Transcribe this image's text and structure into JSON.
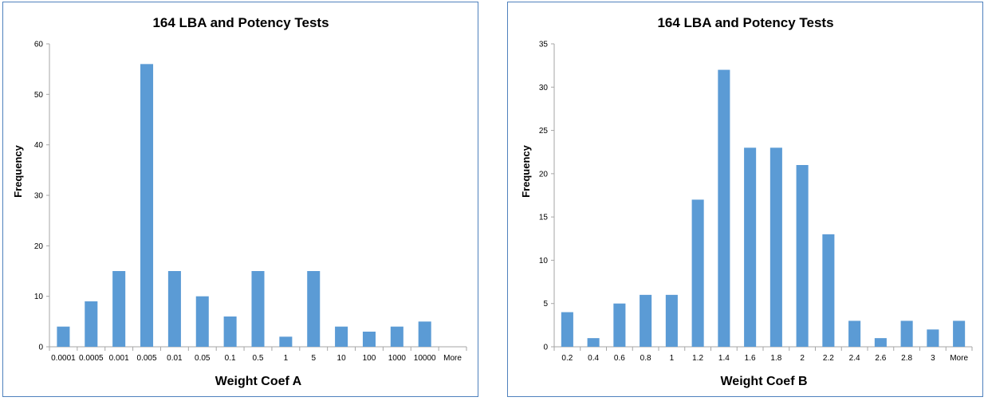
{
  "chart_data": [
    {
      "type": "bar",
      "title": "164 LBA and Potency Tests",
      "xlabel": "Weight Coef A",
      "ylabel": "Frequency",
      "categories": [
        "0.0001",
        "0.0005",
        "0.001",
        "0.005",
        "0.01",
        "0.05",
        "0.1",
        "0.5",
        "1",
        "5",
        "10",
        "100",
        "1000",
        "10000",
        "More"
      ],
      "values": [
        4,
        9,
        15,
        56,
        15,
        10,
        6,
        15,
        2,
        15,
        4,
        3,
        4,
        5,
        0
      ],
      "ylim": [
        0,
        60
      ],
      "yticks": [
        0,
        10,
        20,
        30,
        40,
        50,
        60
      ],
      "grid": false,
      "color": "#5b9bd5"
    },
    {
      "type": "bar",
      "title": "164 LBA and Potency Tests",
      "xlabel": "Weight Coef B",
      "ylabel": "Frequency",
      "categories": [
        "0.2",
        "0.4",
        "0.6",
        "0.8",
        "1",
        "1.2",
        "1.4",
        "1.6",
        "1.8",
        "2",
        "2.2",
        "2.4",
        "2.6",
        "2.8",
        "3",
        "More"
      ],
      "values": [
        4,
        1,
        5,
        6,
        6,
        17,
        32,
        23,
        23,
        21,
        13,
        3,
        1,
        3,
        2,
        3
      ],
      "ylim": [
        0,
        35
      ],
      "yticks": [
        0,
        5,
        10,
        15,
        20,
        25,
        30,
        35
      ],
      "grid": false,
      "color": "#5b9bd5"
    }
  ]
}
